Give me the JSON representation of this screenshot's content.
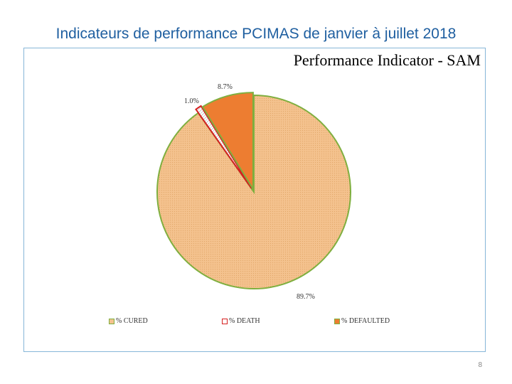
{
  "slide": {
    "title": "Indicateurs de performance PCIMAS de janvier à juillet 2018",
    "page_number": "8"
  },
  "chart_data": {
    "type": "pie",
    "title": "Performance Indicator - SAM",
    "slices": [
      {
        "name": "% CURED",
        "value": 89.7,
        "label": "89.7%",
        "color": "#f4c28e",
        "edge": "#7faf3f"
      },
      {
        "name": "% DEATH",
        "value": 1.0,
        "label": "1.0%",
        "color": "#ffffff",
        "edge": "#d62020"
      },
      {
        "name": "% DEFAULTED",
        "value": 8.7,
        "label": "8.7%",
        "color": "#ed7d31",
        "edge": "#7faf3f"
      }
    ],
    "legend": [
      {
        "name": "% CURED",
        "color": "#f4c28e",
        "edge": "#7faf3f"
      },
      {
        "name": "% DEATH",
        "color": "#ffffff",
        "edge": "#d62020"
      },
      {
        "name": "% DEFAULTED",
        "color": "#ed7d31",
        "edge": "#7faf3f"
      }
    ],
    "legend_position": "bottom"
  }
}
